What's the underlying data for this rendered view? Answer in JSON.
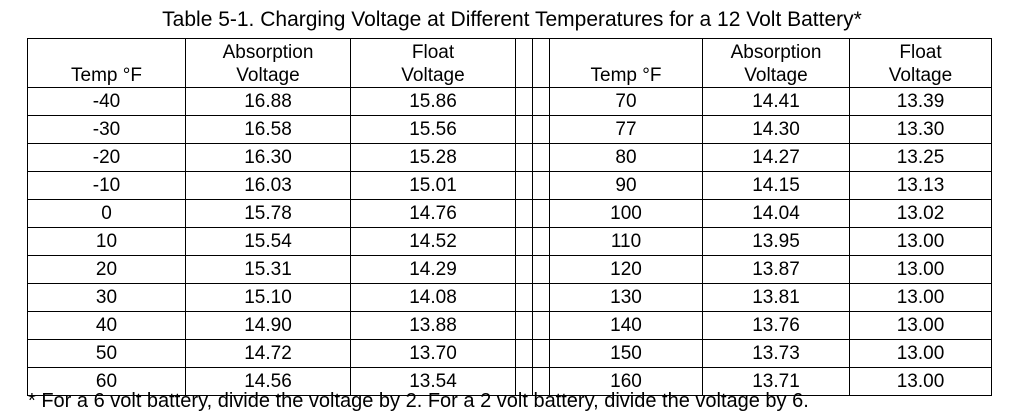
{
  "title": "Table 5-1. Charging Voltage at Different Temperatures for a 12 Volt Battery*",
  "headers": {
    "temp": "Temp °F",
    "absorption_1": "Absorption",
    "absorption_2": "Voltage",
    "float_1": "Float",
    "float_2": "Voltage"
  },
  "left_rows": [
    {
      "temp": "-40",
      "absorption": "16.88",
      "float": "15.86"
    },
    {
      "temp": "-30",
      "absorption": "16.58",
      "float": "15.56"
    },
    {
      "temp": "-20",
      "absorption": "16.30",
      "float": "15.28"
    },
    {
      "temp": "-10",
      "absorption": "16.03",
      "float": "15.01"
    },
    {
      "temp": "0",
      "absorption": "15.78",
      "float": "14.76"
    },
    {
      "temp": "10",
      "absorption": "15.54",
      "float": "14.52"
    },
    {
      "temp": "20",
      "absorption": "15.31",
      "float": "14.29"
    },
    {
      "temp": "30",
      "absorption": "15.10",
      "float": "14.08"
    },
    {
      "temp": "40",
      "absorption": "14.90",
      "float": "13.88"
    },
    {
      "temp": "50",
      "absorption": "14.72",
      "float": "13.70"
    },
    {
      "temp": "60",
      "absorption": "14.56",
      "float": "13.54"
    }
  ],
  "right_rows": [
    {
      "temp": "70",
      "absorption": "14.41",
      "float": "13.39"
    },
    {
      "temp": "77",
      "absorption": "14.30",
      "float": "13.30"
    },
    {
      "temp": "80",
      "absorption": "14.27",
      "float": "13.25"
    },
    {
      "temp": "90",
      "absorption": "14.15",
      "float": "13.13"
    },
    {
      "temp": "100",
      "absorption": "14.04",
      "float": "13.02"
    },
    {
      "temp": "110",
      "absorption": "13.95",
      "float": "13.00"
    },
    {
      "temp": "120",
      "absorption": "13.87",
      "float": "13.00"
    },
    {
      "temp": "130",
      "absorption": "13.81",
      "float": "13.00"
    },
    {
      "temp": "140",
      "absorption": "13.76",
      "float": "13.00"
    },
    {
      "temp": "150",
      "absorption": "13.73",
      "float": "13.00"
    },
    {
      "temp": "160",
      "absorption": "13.71",
      "float": "13.00"
    }
  ],
  "footnote": "* For a 6 volt battery, divide the voltage by 2. For a 2 volt battery, divide the voltage by 6."
}
